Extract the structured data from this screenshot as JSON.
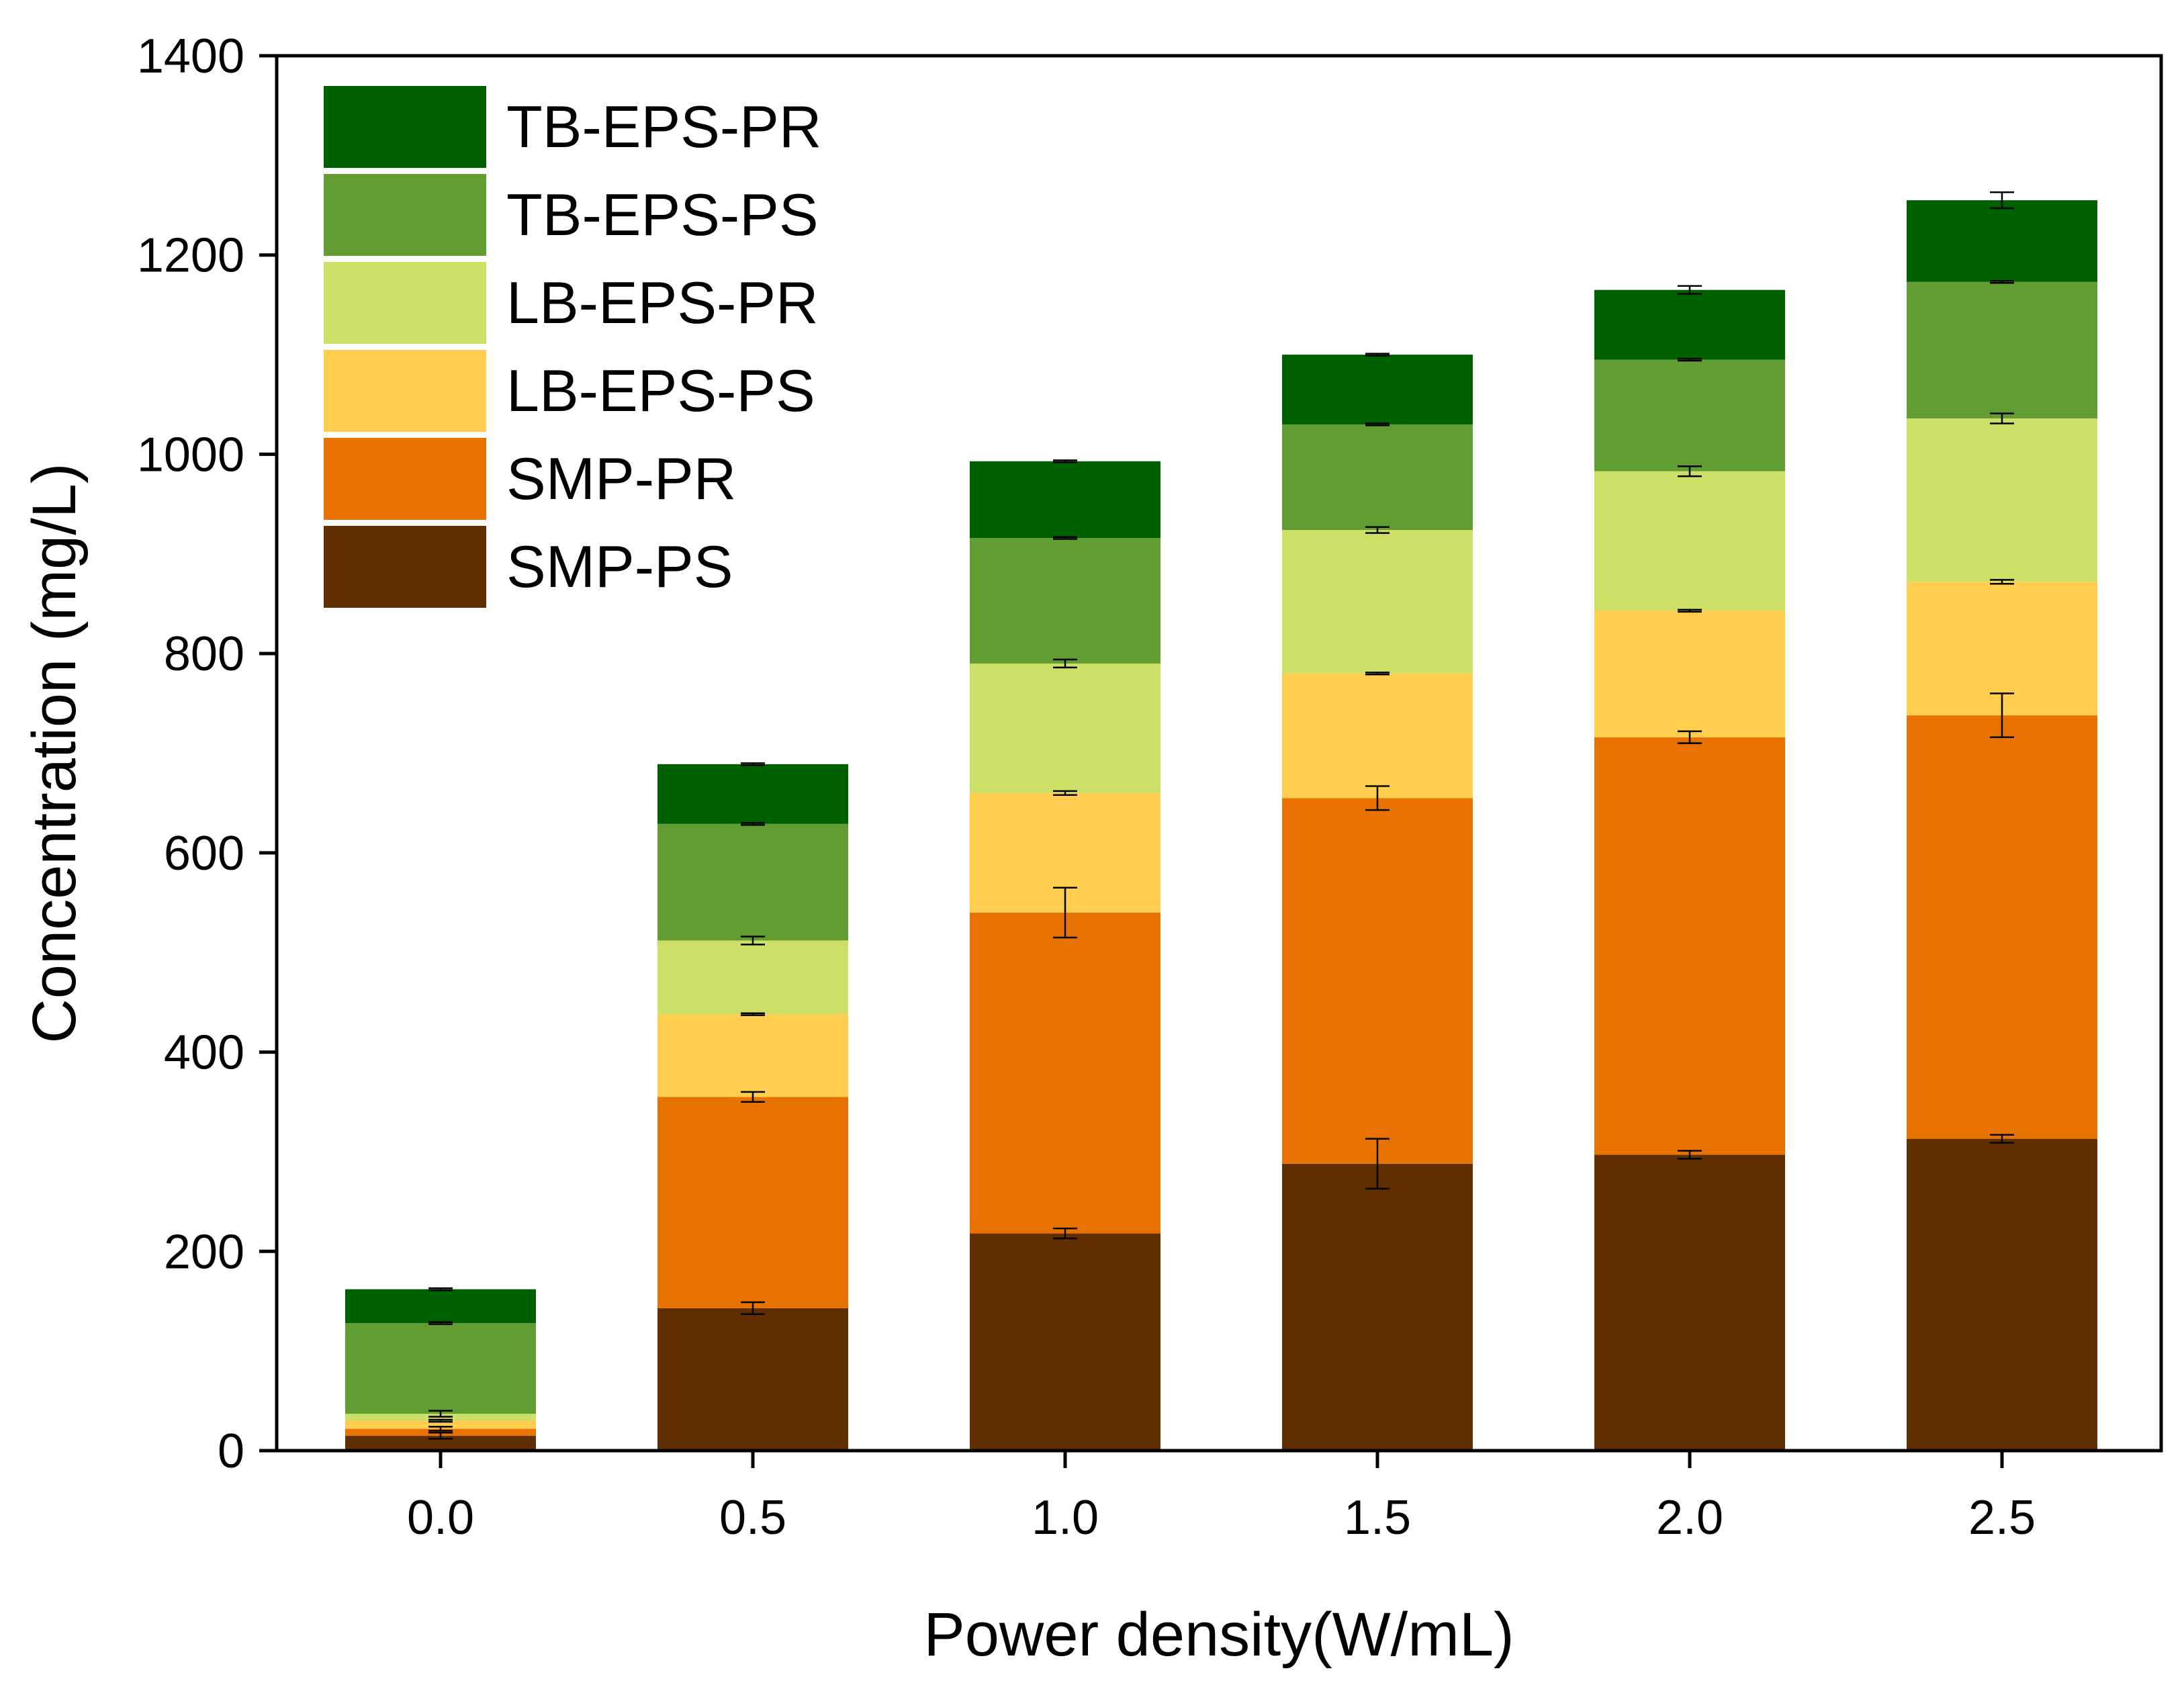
{
  "chart_data": {
    "type": "bar",
    "stacked": true,
    "title": "",
    "xlabel": "Power density(W/mL)",
    "ylabel": "Concentration (mg/L)",
    "categories": [
      "0.0",
      "0.5",
      "1.0",
      "1.5",
      "2.0",
      "2.5"
    ],
    "ylim": [
      0,
      1400
    ],
    "yticks": [
      "0",
      "200",
      "400",
      "600",
      "800",
      "1000",
      "1200",
      "1400"
    ],
    "grid": false,
    "legend_position": "top-left",
    "series": [
      {
        "name": "SMP-PS",
        "color": "#623000",
        "values": [
          15,
          143,
          218,
          288,
          297,
          313
        ],
        "errors": [
          3,
          6,
          5,
          25,
          4,
          4
        ]
      },
      {
        "name": "SMP-PR",
        "color": "#E87200",
        "values": [
          7,
          212,
          322,
          367,
          419,
          425
        ],
        "errors": [
          2,
          5,
          25,
          12,
          6,
          22
        ]
      },
      {
        "name": "LB-EPS-PS",
        "color": "#FFCE4E",
        "values": [
          8,
          83,
          120,
          125,
          127,
          134
        ],
        "errors": [
          1,
          1,
          2,
          1,
          1,
          2
        ]
      },
      {
        "name": "LB-EPS-PR",
        "color": "#CDDF66",
        "values": [
          7,
          74,
          130,
          144,
          140,
          164
        ],
        "errors": [
          3,
          4,
          4,
          3,
          5,
          5
        ]
      },
      {
        "name": "TB-EPS-PS",
        "color": "#629D33",
        "values": [
          91,
          117,
          126,
          106,
          112,
          137
        ],
        "errors": [
          1,
          1,
          1,
          1,
          1,
          1
        ]
      },
      {
        "name": "TB-EPS-PR",
        "color": "#006100",
        "values": [
          34,
          60,
          77,
          70,
          70,
          82
        ],
        "errors": [
          1,
          1,
          1,
          1,
          4,
          8
        ]
      }
    ]
  }
}
